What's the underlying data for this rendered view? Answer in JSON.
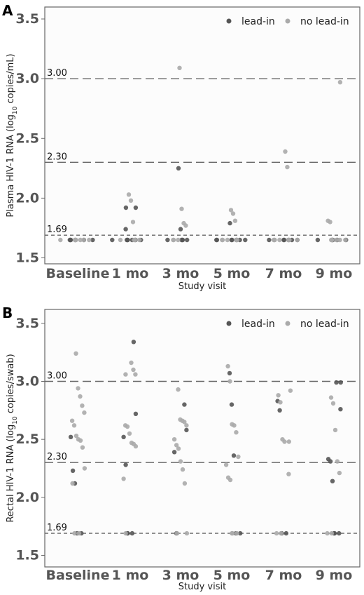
{
  "colors": {
    "lead_in": "#555555",
    "no_lead_in": "#aaaaaa",
    "frame": "#666666",
    "refline": "#666666"
  },
  "chart_data": [
    {
      "panel_letter": "A",
      "type": "scatter",
      "xlabel": "Study visit",
      "ylabel": "Plasma HIV-1 RNA (log10 copies/mL)",
      "categories": [
        "Baseline",
        "1 mo",
        "3 mo",
        "5 mo",
        "7 mo",
        "9 mo"
      ],
      "ylim": [
        1.45,
        3.6
      ],
      "yticks": [
        "1.5",
        "2.0",
        "2.5",
        "3.0",
        "3.5"
      ],
      "reference_lines": [
        {
          "value": 3.0,
          "label": "3.00",
          "style": "long-dash"
        },
        {
          "value": 2.3,
          "label": "2.30",
          "style": "long-dash"
        },
        {
          "value": 1.69,
          "label": "1.69",
          "style": "short-dash"
        }
      ],
      "legend": {
        "position": "top-right",
        "entries": [
          "lead-in",
          "no lead-in"
        ]
      },
      "series": [
        {
          "name": "lead-in",
          "points": [
            [
              0,
              1.65
            ],
            [
              0,
              1.65
            ],
            [
              0,
              1.65
            ],
            [
              0,
              1.65
            ],
            [
              0,
              1.65
            ],
            [
              0,
              1.65
            ],
            [
              1,
              1.92
            ],
            [
              1,
              1.92
            ],
            [
              1,
              1.74
            ],
            [
              1,
              1.65
            ],
            [
              1,
              1.65
            ],
            [
              1,
              1.65
            ],
            [
              1,
              1.65
            ],
            [
              1,
              1.65
            ],
            [
              1,
              1.65
            ],
            [
              1,
              1.65
            ],
            [
              2,
              2.25
            ],
            [
              2,
              1.74
            ],
            [
              2,
              1.65
            ],
            [
              2,
              1.65
            ],
            [
              2,
              1.65
            ],
            [
              2,
              1.65
            ],
            [
              2,
              1.65
            ],
            [
              3,
              1.79
            ],
            [
              3,
              1.65
            ],
            [
              3,
              1.65
            ],
            [
              3,
              1.65
            ],
            [
              3,
              1.65
            ],
            [
              3,
              1.65
            ],
            [
              3,
              1.65
            ],
            [
              3,
              1.65
            ],
            [
              4,
              1.65
            ],
            [
              4,
              1.65
            ],
            [
              4,
              1.65
            ],
            [
              4,
              1.65
            ],
            [
              4,
              1.65
            ],
            [
              4,
              1.65
            ],
            [
              5,
              1.65
            ],
            [
              5,
              1.65
            ],
            [
              5,
              1.65
            ],
            [
              5,
              1.65
            ],
            [
              5,
              1.65
            ]
          ]
        },
        {
          "name": "no lead-in",
          "points": [
            [
              0,
              1.65
            ],
            [
              0,
              1.65
            ],
            [
              0,
              1.65
            ],
            [
              0,
              1.65
            ],
            [
              0,
              1.65
            ],
            [
              0,
              1.65
            ],
            [
              0,
              1.65
            ],
            [
              1,
              2.03
            ],
            [
              1,
              1.98
            ],
            [
              1,
              1.8
            ],
            [
              1,
              1.65
            ],
            [
              1,
              1.65
            ],
            [
              1,
              1.65
            ],
            [
              1,
              1.65
            ],
            [
              2,
              3.09
            ],
            [
              2,
              1.91
            ],
            [
              2,
              1.79
            ],
            [
              2,
              1.77
            ],
            [
              2,
              1.65
            ],
            [
              2,
              1.65
            ],
            [
              2,
              1.65
            ],
            [
              3,
              1.9
            ],
            [
              3,
              1.87
            ],
            [
              3,
              1.81
            ],
            [
              3,
              1.65
            ],
            [
              3,
              1.65
            ],
            [
              3,
              1.65
            ],
            [
              3,
              1.65
            ],
            [
              3,
              1.65
            ],
            [
              4,
              2.39
            ],
            [
              4,
              2.26
            ],
            [
              4,
              1.65
            ],
            [
              4,
              1.65
            ],
            [
              4,
              1.65
            ],
            [
              4,
              1.65
            ],
            [
              4,
              1.65
            ],
            [
              4,
              1.65
            ],
            [
              4,
              1.65
            ],
            [
              5,
              2.97
            ],
            [
              5,
              1.81
            ],
            [
              5,
              1.8
            ],
            [
              5,
              1.65
            ],
            [
              5,
              1.65
            ],
            [
              5,
              1.65
            ],
            [
              5,
              1.65
            ],
            [
              5,
              1.65
            ],
            [
              5,
              1.65
            ]
          ]
        }
      ]
    },
    {
      "panel_letter": "B",
      "type": "scatter",
      "xlabel": "Study visit",
      "ylabel": "Rectal HIV-1 RNA (log10 copies/swab)",
      "categories": [
        "Baseline",
        "1 mo",
        "3 mo",
        "5 mo",
        "7 mo",
        "9 mo"
      ],
      "ylim": [
        1.4,
        3.62
      ],
      "yticks": [
        "1.5",
        "2.0",
        "2.5",
        "3.0",
        "3.5"
      ],
      "reference_lines": [
        {
          "value": 3.0,
          "label": "3.00",
          "style": "long-dash"
        },
        {
          "value": 2.3,
          "label": "2.30",
          "style": "long-dash"
        },
        {
          "value": 1.69,
          "label": "1.69",
          "style": "short-dash"
        }
      ],
      "legend": {
        "position": "top-right",
        "entries": [
          "lead-in",
          "no lead-in"
        ]
      },
      "series": [
        {
          "name": "lead-in",
          "points": [
            [
              0,
              2.52
            ],
            [
              0,
              2.23
            ],
            [
              0,
              2.12
            ],
            [
              0,
              1.69
            ],
            [
              0,
              1.69
            ],
            [
              1,
              3.34
            ],
            [
              1,
              2.72
            ],
            [
              1,
              2.52
            ],
            [
              1,
              2.28
            ],
            [
              1,
              1.69
            ],
            [
              1,
              1.69
            ],
            [
              1,
              1.69
            ],
            [
              2,
              2.8
            ],
            [
              2,
              2.58
            ],
            [
              2,
              2.39
            ],
            [
              2,
              1.69
            ],
            [
              3,
              3.07
            ],
            [
              3,
              2.8
            ],
            [
              3,
              2.36
            ],
            [
              3,
              1.69
            ],
            [
              3,
              1.69
            ],
            [
              4,
              2.83
            ],
            [
              4,
              2.75
            ],
            [
              4,
              1.69
            ],
            [
              4,
              1.69
            ],
            [
              5,
              2.99
            ],
            [
              5,
              2.99
            ],
            [
              5,
              2.76
            ],
            [
              5,
              2.33
            ],
            [
              5,
              2.31
            ],
            [
              5,
              2.14
            ],
            [
              5,
              1.69
            ],
            [
              5,
              1.69
            ],
            [
              5,
              1.69
            ]
          ]
        },
        {
          "name": "no lead-in",
          "points": [
            [
              0,
              3.24
            ],
            [
              0,
              2.94
            ],
            [
              0,
              2.87
            ],
            [
              0,
              2.79
            ],
            [
              0,
              2.73
            ],
            [
              0,
              2.66
            ],
            [
              0,
              2.62
            ],
            [
              0,
              2.53
            ],
            [
              0,
              2.5
            ],
            [
              0,
              2.49
            ],
            [
              0,
              2.43
            ],
            [
              0,
              2.25
            ],
            [
              0,
              2.12
            ],
            [
              0,
              1.69
            ],
            [
              0,
              1.69
            ],
            [
              1,
              3.16
            ],
            [
              1,
              3.1
            ],
            [
              1,
              3.06
            ],
            [
              1,
              3.06
            ],
            [
              1,
              2.62
            ],
            [
              1,
              2.61
            ],
            [
              1,
              2.55
            ],
            [
              1,
              2.47
            ],
            [
              1,
              2.46
            ],
            [
              1,
              2.44
            ],
            [
              1,
              2.16
            ],
            [
              1,
              1.69
            ],
            [
              2,
              2.93
            ],
            [
              2,
              2.67
            ],
            [
              2,
              2.66
            ],
            [
              2,
              2.65
            ],
            [
              2,
              2.62
            ],
            [
              2,
              2.5
            ],
            [
              2,
              2.45
            ],
            [
              2,
              2.42
            ],
            [
              2,
              2.31
            ],
            [
              2,
              2.24
            ],
            [
              2,
              2.12
            ],
            [
              2,
              1.69
            ],
            [
              2,
              1.69
            ],
            [
              3,
              3.13
            ],
            [
              3,
              3.0
            ],
            [
              3,
              2.63
            ],
            [
              3,
              2.62
            ],
            [
              3,
              2.56
            ],
            [
              3,
              2.35
            ],
            [
              3,
              2.28
            ],
            [
              3,
              2.17
            ],
            [
              3,
              2.15
            ],
            [
              3,
              1.69
            ],
            [
              3,
              1.69
            ],
            [
              3,
              1.69
            ],
            [
              4,
              2.92
            ],
            [
              4,
              2.88
            ],
            [
              4,
              2.82
            ],
            [
              4,
              2.5
            ],
            [
              4,
              2.48
            ],
            [
              4,
              2.48
            ],
            [
              4,
              2.2
            ],
            [
              4,
              1.69
            ],
            [
              4,
              1.69
            ],
            [
              5,
              2.86
            ],
            [
              5,
              2.81
            ],
            [
              5,
              2.58
            ],
            [
              5,
              2.31
            ],
            [
              5,
              2.21
            ],
            [
              5,
              1.69
            ],
            [
              5,
              1.69
            ]
          ]
        }
      ]
    }
  ]
}
